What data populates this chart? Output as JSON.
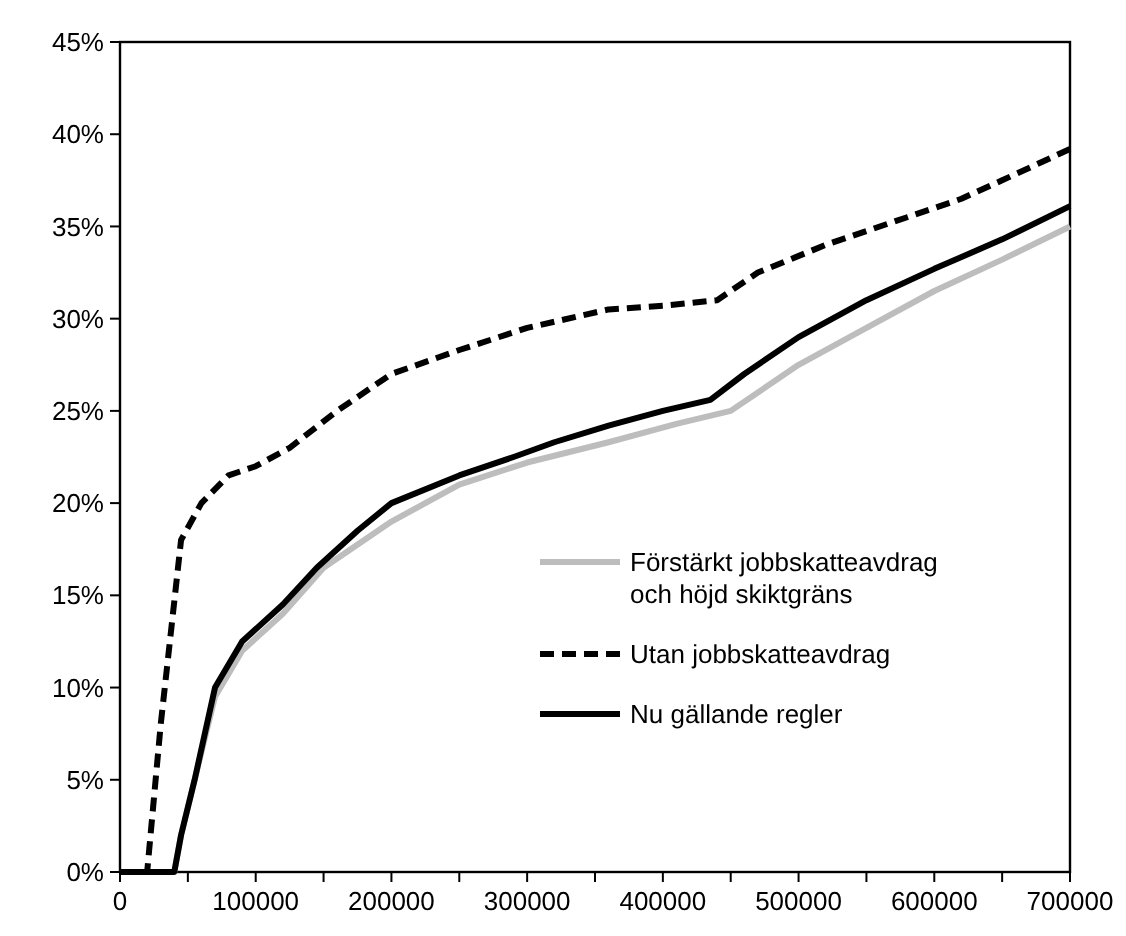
{
  "chart_data": {
    "type": "line",
    "xlim": [
      0,
      700000
    ],
    "xticks": [
      0,
      {
        "value": 50000,
        "label": null
      },
      100000,
      {
        "value": 150000,
        "label": null
      },
      200000,
      {
        "value": 250000,
        "label": null
      },
      300000,
      {
        "value": 350000,
        "label": null
      },
      400000,
      {
        "value": 450000,
        "label": null
      },
      500000,
      {
        "value": 550000,
        "label": null
      },
      600000,
      {
        "value": 650000,
        "label": null
      },
      700000
    ],
    "ylim": [
      0,
      45
    ],
    "yticks": [
      {
        "value": 0,
        "label": "0%"
      },
      {
        "value": 5,
        "label": "5%"
      },
      {
        "value": 10,
        "label": "10%"
      },
      {
        "value": 15,
        "label": "15%"
      },
      {
        "value": 20,
        "label": "20%"
      },
      {
        "value": 25,
        "label": "25%"
      },
      {
        "value": 30,
        "label": "30%"
      },
      {
        "value": 35,
        "label": "35%"
      },
      {
        "value": 40,
        "label": "40%"
      },
      {
        "value": 45,
        "label": "45%"
      }
    ],
    "grid": false,
    "legend": "bottom right",
    "series": [
      {
        "name": "Förstärkt jobbskatteavdrag och höjd skiktgräns",
        "color": "#bdbdbd",
        "x": [
          0,
          40000,
          45000,
          55000,
          70000,
          90000,
          120000,
          150000,
          200000,
          250000,
          300000,
          360000,
          410000,
          450000,
          500000,
          550000,
          600000,
          650000,
          700000
        ],
        "values": [
          0,
          0,
          2,
          5,
          9.5,
          12,
          14,
          16.5,
          19,
          21,
          22.2,
          23.3,
          24.3,
          25,
          27.5,
          29.5,
          31.5,
          33.2,
          35
        ]
      },
      {
        "name": "Utan jobbskatteavdrag",
        "color": "#000000",
        "line_style": "dashed",
        "x": [
          0,
          20000,
          30000,
          45000,
          60000,
          80000,
          100000,
          125000,
          160000,
          200000,
          250000,
          300000,
          360000,
          400000,
          440000,
          470000,
          520000,
          580000,
          620000,
          650000,
          700000
        ],
        "values": [
          0,
          0,
          8,
          18,
          20,
          21.5,
          22,
          23,
          25,
          27,
          28.3,
          29.5,
          30.5,
          30.7,
          31,
          32.5,
          34,
          35.5,
          36.5,
          37.5,
          39.2
        ]
      },
      {
        "name": "Nu gällande regler",
        "color": "#000000",
        "x": [
          0,
          40000,
          45000,
          55000,
          70000,
          90000,
          120000,
          145000,
          175000,
          200000,
          250000,
          290000,
          320000,
          360000,
          400000,
          435000,
          460000,
          500000,
          550000,
          600000,
          650000,
          700000
        ],
        "values": [
          0,
          0,
          2,
          5,
          10,
          12.5,
          14.5,
          16.5,
          18.5,
          20,
          21.5,
          22.5,
          23.3,
          24.2,
          25,
          25.6,
          27,
          29,
          31,
          32.7,
          34.3,
          36.1
        ]
      }
    ]
  }
}
